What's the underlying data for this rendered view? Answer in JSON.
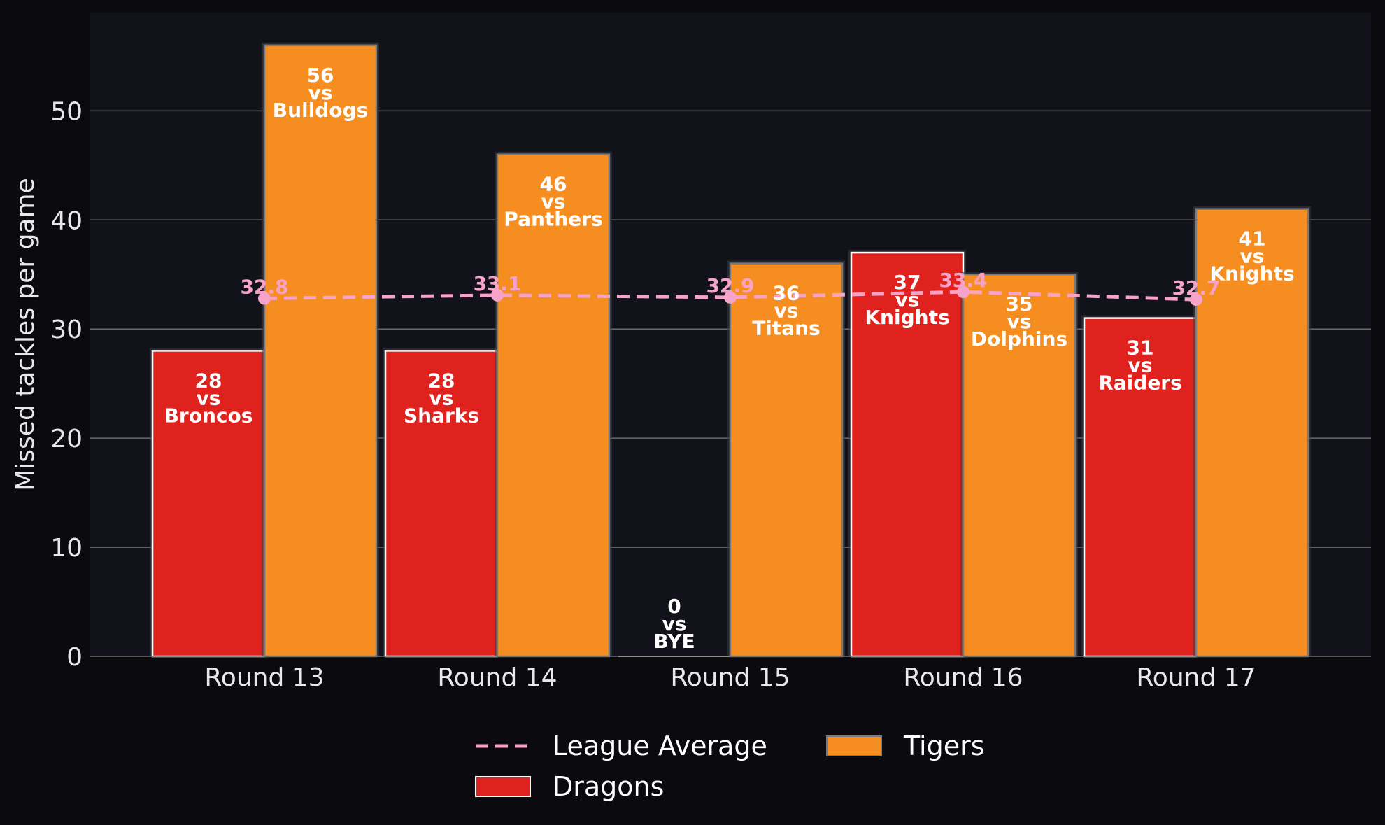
{
  "chart_data": {
    "type": "bar",
    "ylabel": "Missed tackles per game",
    "ylim": [
      0,
      59
    ],
    "yticks": [
      0,
      10,
      20,
      30,
      40,
      50
    ],
    "grid": true,
    "legend_position": "bottom-center",
    "categories": [
      "Round 13",
      "Round 14",
      "Round 15",
      "Round 16",
      "Round 17"
    ],
    "series": [
      {
        "name": "Dragons",
        "color": "#e0221e",
        "values": [
          28,
          28,
          0,
          37,
          31
        ],
        "opponents": [
          "Broncos",
          "Sharks",
          "BYE",
          "Knights",
          "Raiders"
        ]
      },
      {
        "name": "Tigers",
        "color": "#f68d20",
        "values": [
          56,
          46,
          36,
          35,
          41
        ],
        "opponents": [
          "Bulldogs",
          "Panthers",
          "Titans",
          "Dolphins",
          "Knights"
        ]
      }
    ],
    "line": {
      "name": "League Average",
      "color": "#f7a3c9",
      "style": "dashed",
      "values": [
        32.8,
        33.1,
        32.9,
        33.4,
        32.7
      ],
      "labels": [
        "32.8",
        "33.1",
        "32.9",
        "33.4",
        "32.7"
      ]
    },
    "vs_text": "vs",
    "legend": [
      "League Average",
      "Dragons",
      "Tigers"
    ]
  }
}
